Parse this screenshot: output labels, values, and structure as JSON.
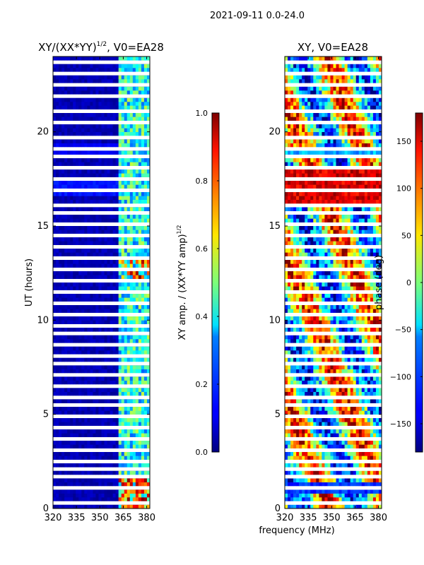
{
  "figure": {
    "suptitle": "2021-09-11 0.0-24.0",
    "xlabel": "frequency (MHz)"
  },
  "chart_data": [
    {
      "type": "heatmap",
      "title_main": "XY/(XX*YY)",
      "title_exp": "1/2",
      "title_suffix": ", V0=EA28",
      "ylabel": "UT (hours)",
      "xlim": [
        320,
        382
      ],
      "ylim": [
        0,
        24
      ],
      "xticks": [
        "320",
        "335",
        "350",
        "365",
        "380"
      ],
      "yticks": [
        "0",
        "5",
        "10",
        "15",
        "20"
      ],
      "colorbar": {
        "label_main": "XY amp. / (XX*YY amp)",
        "label_exp": "1/2",
        "ticks": [
          "0.0",
          "0.2",
          "0.4",
          "0.6",
          "0.8",
          "1.0"
        ],
        "range": [
          0,
          1
        ]
      }
    },
    {
      "type": "heatmap",
      "title_main": "XY, V0=EA28",
      "ylabel": "",
      "xlim": [
        320,
        382
      ],
      "ylim": [
        0,
        24
      ],
      "xticks": [
        "320",
        "335",
        "350",
        "365",
        "380"
      ],
      "yticks": [
        "0",
        "5",
        "10",
        "15",
        "20"
      ],
      "colorbar": {
        "label_main": "phase (deg)",
        "ticks": [
          "−150",
          "−100",
          "−50",
          "0",
          "50",
          "100",
          "150"
        ],
        "range": [
          -180,
          180
        ]
      }
    }
  ],
  "colors": {
    "jet_low": "#00007f",
    "jet_high": "#7f0000",
    "gap": "#ffffff"
  }
}
